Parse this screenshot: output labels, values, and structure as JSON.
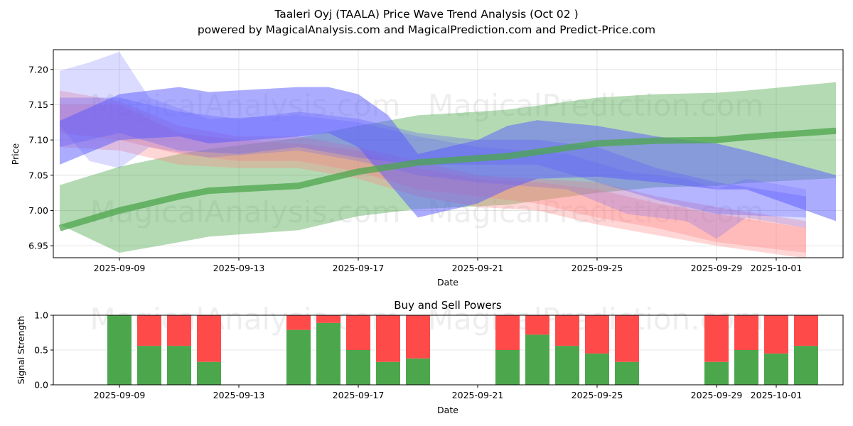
{
  "title": "Taaleri Oyj (TAALA) Price Wave Trend Analysis (Oct 02 )",
  "subtitle": "powered by MagicalAnalysis.com and MagicalPrediction.com and Predict-Price.com",
  "watermarks": [
    "MagicalAnalysis.com",
    "MagicalPrediction.com"
  ],
  "colors": {
    "buy": "#4ca64c",
    "sell": "#ff4a4a",
    "green_band": "#4ca64c",
    "blue_band": "#5a5aff",
    "red_band": "#ff8080"
  },
  "chart_data": [
    {
      "type": "area",
      "title": "Price Wave Trend",
      "xlabel": "Date",
      "ylabel": "Price",
      "ylim": [
        6.933,
        7.228
      ],
      "xlim": [
        "2025-09-06T18:00",
        "2025-10-03T18:00"
      ],
      "grid": true,
      "yticks": [
        "6.95",
        "7.00",
        "7.05",
        "7.10",
        "7.15",
        "7.20"
      ],
      "xticks": [
        "2025-09-09",
        "2025-09-13",
        "2025-09-17",
        "2025-09-21",
        "2025-09-25",
        "2025-09-29",
        "2025-10-01"
      ],
      "trend_line": {
        "name": "green trend",
        "x": [
          "2025-09-07",
          "2025-09-09",
          "2025-09-11",
          "2025-09-12",
          "2025-09-15",
          "2025-09-17",
          "2025-09-19",
          "2025-09-21",
          "2025-09-22",
          "2025-09-25",
          "2025-09-27",
          "2025-09-29",
          "2025-09-30",
          "2025-10-03"
        ],
        "values": [
          6.975,
          7.0,
          7.02,
          7.028,
          7.035,
          7.055,
          7.068,
          7.074,
          7.077,
          7.095,
          7.099,
          7.1,
          7.104,
          7.113
        ]
      },
      "green_band": {
        "x": [
          "2025-09-07",
          "2025-09-09",
          "2025-09-11",
          "2025-09-12",
          "2025-09-15",
          "2025-09-17",
          "2025-09-19",
          "2025-09-21",
          "2025-09-22",
          "2025-09-25",
          "2025-09-27",
          "2025-09-29",
          "2025-09-30",
          "2025-10-03"
        ],
        "upper": [
          7.036,
          7.062,
          7.08,
          7.087,
          7.103,
          7.12,
          7.135,
          7.14,
          7.143,
          7.16,
          7.165,
          7.167,
          7.17,
          7.182
        ],
        "lower": [
          6.98,
          6.94,
          6.955,
          6.963,
          6.972,
          6.992,
          7.002,
          7.006,
          7.008,
          7.025,
          7.033,
          7.035,
          7.039,
          7.046
        ]
      },
      "blue_bands": [
        {
          "x": [
            "2025-09-07",
            "2025-09-09",
            "2025-09-11",
            "2025-09-12",
            "2025-09-15",
            "2025-09-16",
            "2025-09-17",
            "2025-09-18",
            "2025-09-19",
            "2025-09-21",
            "2025-09-22",
            "2025-09-23",
            "2025-09-25",
            "2025-09-27",
            "2025-09-29",
            "2025-09-30",
            "2025-10-03"
          ],
          "upper": [
            7.127,
            7.165,
            7.175,
            7.168,
            7.175,
            7.175,
            7.165,
            7.135,
            7.08,
            7.1,
            7.12,
            7.128,
            7.12,
            7.105,
            7.095,
            7.085,
            7.05
          ],
          "lower": [
            7.065,
            7.1,
            7.105,
            7.095,
            7.105,
            7.11,
            7.09,
            7.04,
            6.99,
            7.01,
            7.03,
            7.045,
            7.048,
            7.04,
            7.03,
            7.03,
            6.985
          ]
        },
        {
          "x": [
            "2025-09-07",
            "2025-09-08",
            "2025-09-09",
            "2025-09-10",
            "2025-09-12",
            "2025-09-15",
            "2025-09-17",
            "2025-09-19",
            "2025-09-21",
            "2025-09-24",
            "2025-09-26",
            "2025-09-28",
            "2025-09-29",
            "2025-09-30",
            "2025-10-02"
          ],
          "upper": [
            7.198,
            7.21,
            7.225,
            7.16,
            7.13,
            7.135,
            7.125,
            7.105,
            7.09,
            7.08,
            7.055,
            7.045,
            7.03,
            7.045,
            7.03
          ],
          "lower": [
            7.12,
            7.07,
            7.06,
            7.09,
            7.075,
            7.085,
            7.07,
            7.05,
            7.04,
            7.03,
            6.995,
            6.985,
            6.96,
            6.99,
            6.975
          ]
        },
        {
          "x": [
            "2025-09-07",
            "2025-09-09",
            "2025-09-11",
            "2025-09-13",
            "2025-09-15",
            "2025-09-17",
            "2025-09-19",
            "2025-09-21",
            "2025-09-23",
            "2025-09-25",
            "2025-09-27",
            "2025-09-29",
            "2025-10-02"
          ],
          "upper": [
            7.16,
            7.16,
            7.14,
            7.13,
            7.14,
            7.13,
            7.11,
            7.1,
            7.1,
            7.09,
            7.06,
            7.04,
            7.02
          ],
          "lower": [
            7.09,
            7.11,
            7.085,
            7.08,
            7.09,
            7.075,
            7.065,
            7.065,
            7.065,
            7.04,
            7.015,
            6.995,
            6.99
          ]
        }
      ],
      "red_bands": [
        {
          "x": [
            "2025-09-07",
            "2025-09-09",
            "2025-09-11",
            "2025-09-13",
            "2025-09-15",
            "2025-09-17",
            "2025-09-19",
            "2025-09-21",
            "2025-09-23",
            "2025-09-25",
            "2025-09-27",
            "2025-09-29",
            "2025-10-02"
          ],
          "upper": [
            7.17,
            7.155,
            7.12,
            7.105,
            7.105,
            7.09,
            7.07,
            7.05,
            7.045,
            7.04,
            7.02,
            7.005,
            6.985
          ],
          "lower": [
            7.11,
            7.1,
            7.08,
            7.07,
            7.07,
            7.055,
            7.03,
            7.02,
            7.01,
            6.99,
            6.975,
            6.955,
            6.94
          ]
        },
        {
          "x": [
            "2025-09-07",
            "2025-09-09",
            "2025-09-11",
            "2025-09-13",
            "2025-09-15",
            "2025-09-17",
            "2025-09-19",
            "2025-09-21",
            "2025-09-23",
            "2025-09-25",
            "2025-09-27",
            "2025-09-29",
            "2025-10-02"
          ],
          "upper": [
            7.15,
            7.15,
            7.11,
            7.1,
            7.095,
            7.085,
            7.06,
            7.045,
            7.04,
            7.03,
            7.01,
            6.995,
            6.975
          ],
          "lower": [
            7.09,
            7.085,
            7.065,
            7.06,
            7.06,
            7.045,
            7.02,
            7.005,
            7.0,
            6.98,
            6.965,
            6.95,
            6.932
          ]
        }
      ]
    },
    {
      "type": "bar",
      "stacked": true,
      "title": "Buy and Sell Powers",
      "xlabel": "Date",
      "ylabel": "Signal Strength",
      "ylim": [
        0,
        1
      ],
      "yticks": [
        "0.0",
        "0.5",
        "1.0"
      ],
      "xticks": [
        "2025-09-09",
        "2025-09-13",
        "2025-09-17",
        "2025-09-21",
        "2025-09-25",
        "2025-09-29",
        "2025-10-01"
      ],
      "grid": true,
      "x": [
        "2025-09-09",
        "2025-09-10",
        "2025-09-11",
        "2025-09-12",
        "2025-09-15",
        "2025-09-16",
        "2025-09-17",
        "2025-09-18",
        "2025-09-19",
        "2025-09-22",
        "2025-09-23",
        "2025-09-24",
        "2025-09-25",
        "2025-09-26",
        "2025-09-29",
        "2025-09-30",
        "2025-10-01",
        "2025-10-02"
      ],
      "series": [
        {
          "name": "Buy",
          "values": [
            1.0,
            0.56,
            0.56,
            0.33,
            0.79,
            0.89,
            0.5,
            0.33,
            0.38,
            0.5,
            0.72,
            0.56,
            0.45,
            0.33,
            0.33,
            0.5,
            0.45,
            0.56
          ]
        },
        {
          "name": "Sell",
          "values": [
            0.0,
            0.44,
            0.44,
            0.67,
            0.21,
            0.11,
            0.5,
            0.67,
            0.62,
            0.5,
            0.28,
            0.44,
            0.55,
            0.67,
            0.67,
            0.5,
            0.55,
            0.44
          ]
        }
      ]
    }
  ]
}
